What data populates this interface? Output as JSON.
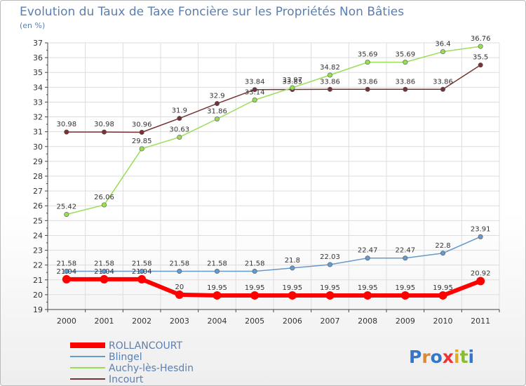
{
  "chart_data": {
    "type": "line",
    "title": "Evolution du Taux de Taxe Foncière sur les Propriétés Non Bâties",
    "subtitle": "(en %)",
    "x": [
      "2000",
      "2001",
      "2002",
      "2003",
      "2004",
      "2005",
      "2006",
      "2007",
      "2008",
      "2009",
      "2010",
      "2011"
    ],
    "ylim": [
      19,
      37
    ],
    "yticks": [
      19,
      20,
      21,
      22,
      23,
      24,
      25,
      26,
      27,
      28,
      29,
      30,
      31,
      32,
      33,
      34,
      35,
      36,
      37
    ],
    "grid": true,
    "legend_position": "bottom-left",
    "series": [
      {
        "name": "ROLLANCOURT",
        "color": "#ff0000",
        "values": [
          21.04,
          21.04,
          21.04,
          20,
          19.95,
          19.95,
          19.95,
          19.95,
          19.95,
          19.95,
          19.95,
          20.92
        ],
        "labels": [
          "21.04",
          "21.04",
          "21.04",
          "20",
          "19.95",
          "19.95",
          "19.95",
          "19.95",
          "19.95",
          "19.95",
          "19.95",
          "20.92"
        ]
      },
      {
        "name": "Blingel",
        "color": "#6699cc",
        "values": [
          21.58,
          21.58,
          21.58,
          21.58,
          21.58,
          21.58,
          21.8,
          22.03,
          22.47,
          22.47,
          22.8,
          23.91
        ],
        "labels": [
          "21.58",
          "21.58",
          "21.58",
          "21.58",
          "21.58",
          "21.58",
          "21.8",
          "22.03",
          "22.47",
          "22.47",
          "22.8",
          "23.91"
        ]
      },
      {
        "name": "Auchy-lès-Hesdin",
        "color": "#99dd55",
        "values": [
          25.42,
          26.06,
          29.85,
          30.63,
          31.86,
          33.14,
          33.97,
          34.82,
          35.69,
          35.69,
          36.4,
          36.76
        ],
        "labels": [
          "25.42",
          "26.06",
          "29.85",
          "30.63",
          "31.86",
          "33.14",
          "33.97",
          "34.82",
          "35.69",
          "35.69",
          "36.4",
          "36.76"
        ]
      },
      {
        "name": "Incourt",
        "color": "#773333",
        "values": [
          30.98,
          30.98,
          30.96,
          31.9,
          32.9,
          33.84,
          33.85,
          33.86,
          33.86,
          33.86,
          33.86,
          35.5
        ],
        "labels": [
          "30.98",
          "30.98",
          "30.96",
          "31.9",
          "32.9",
          "33.84",
          "33.85",
          "33.86",
          "33.86",
          "33.86",
          "33.86",
          "35.5"
        ]
      }
    ]
  },
  "logo": {
    "text": "Proxiti"
  }
}
